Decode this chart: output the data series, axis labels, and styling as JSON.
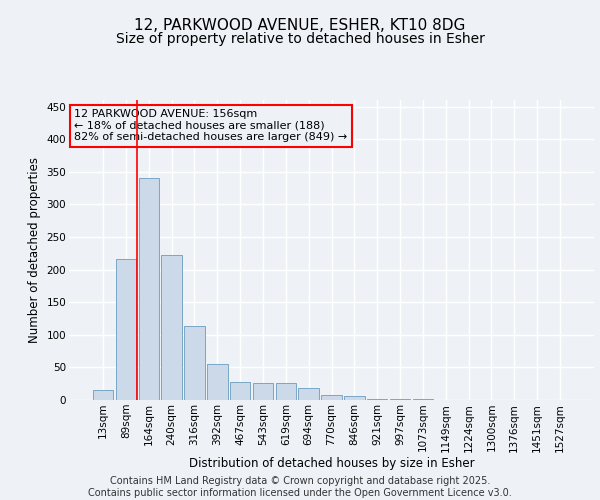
{
  "title1": "12, PARKWOOD AVENUE, ESHER, KT10 8DG",
  "title2": "Size of property relative to detached houses in Esher",
  "xlabel": "Distribution of detached houses by size in Esher",
  "ylabel": "Number of detached properties",
  "categories": [
    "13sqm",
    "89sqm",
    "164sqm",
    "240sqm",
    "316sqm",
    "392sqm",
    "467sqm",
    "543sqm",
    "619sqm",
    "694sqm",
    "770sqm",
    "846sqm",
    "921sqm",
    "997sqm",
    "1073sqm",
    "1149sqm",
    "1224sqm",
    "1300sqm",
    "1376sqm",
    "1451sqm",
    "1527sqm"
  ],
  "values": [
    15,
    216,
    340,
    222,
    113,
    55,
    27,
    26,
    26,
    18,
    8,
    6,
    2,
    2,
    1,
    0,
    0,
    0,
    0,
    0,
    0
  ],
  "bar_color": "#ccd9e8",
  "bar_edge_color": "#6a9cc0",
  "redline_x": 1.5,
  "annotation_text_line1": "12 PARKWOOD AVENUE: 156sqm",
  "annotation_text_line2": "← 18% of detached houses are smaller (188)",
  "annotation_text_line3": "82% of semi-detached houses are larger (849) →",
  "ylim": [
    0,
    460
  ],
  "yticks": [
    0,
    50,
    100,
    150,
    200,
    250,
    300,
    350,
    400,
    450
  ],
  "footer_line1": "Contains HM Land Registry data © Crown copyright and database right 2025.",
  "footer_line2": "Contains public sector information licensed under the Open Government Licence v3.0.",
  "background_color": "#eef2f7",
  "grid_color": "#ffffff",
  "title_fontsize": 11,
  "subtitle_fontsize": 10,
  "tick_fontsize": 7.5,
  "label_fontsize": 8.5,
  "footer_fontsize": 7
}
